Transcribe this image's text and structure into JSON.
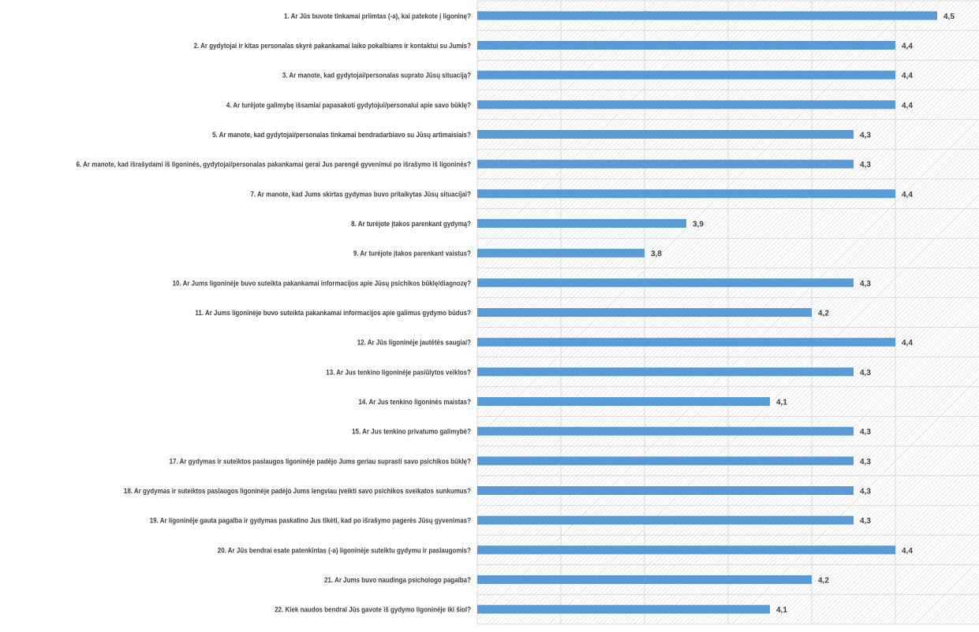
{
  "chart_data": {
    "type": "bar",
    "orientation": "horizontal",
    "categories": [
      "1. Ar Jūs buvote tinkamai priimtas (-a), kai patekote į ligoninę?",
      "2. Ar gydytojai ir kitas personalas skyrė pakankamai laiko pokalbiams ir kontaktui su Jumis?",
      "3. Ar manote, kad gydytojai/personalas suprato Jūsų situaciją?",
      "4. Ar turėjote galimybę išsamiai papasakoti gydytojui/personalui apie savo būklę?",
      "5. Ar manote, kad gydytojai/personalas tinkamai bendradarbiavo su Jūsų artimaisiais?",
      "6. Ar manote, kad išrašydami iš ligoninės, gydytojai/personalas pakankamai gerai Jus parengė gyvenimui po išrašymo iš ligoninės?",
      "7. Ar manote, kad Jums skirtas gydymas buvo pritaikytas Jūsų situacijai?",
      "8. Ar turėjote įtakos parenkant gydymą?",
      "9. Ar turėjote įtakos parenkant vaistus?",
      "10. Ar Jums ligoninėje buvo suteikta pakankamai informacijos apie Jūsų psichikos būklę/diagnozę?",
      "11. Ar Jums ligoninėje buvo suteikta pakankamai informacijos apie galimus gydymo būdus?",
      "12. Ar Jūs ligoninėje jautėtės saugiai?",
      "13. Ar Jus tenkino ligoninėje pasiūlytos veiklos?",
      "14. Ar Jus tenkino ligoninės maistas?",
      "15. Ar Jus tenkino privatumo galimybė?",
      "17. Ar gydymas ir suteiktos paslaugos ligoninėje padėjo Jums geriau suprasti savo psichikos būklę?",
      "18. Ar gydymas ir suteiktos paslaugos ligoninėje padėjo Jums lengviau įveikti savo psichikos sveikatos sunkumus?",
      "19. Ar ligoninėje gauta pagalba ir gydymas paskatino Jus tikėti, kad po išrašymo pagerės Jūsų gyvenimas?",
      "20. Ar Jūs bendrai esate patenkintas (-a) ligoninėje suteiktu gydymu ir paslaugomis?",
      "21. Ar Jums buvo naudinga psichologo pagalba?",
      "22. Kiek naudos bendrai Jūs gavote iš gydymo ligoninėje iki šiol?"
    ],
    "values": [
      4.5,
      4.4,
      4.4,
      4.4,
      4.3,
      4.3,
      4.4,
      3.9,
      3.8,
      4.3,
      4.2,
      4.4,
      4.3,
      4.1,
      4.3,
      4.3,
      4.3,
      4.3,
      4.4,
      4.2,
      4.1
    ],
    "data_labels": [
      "4,5",
      "4,4",
      "4,4",
      "4,4",
      "4,3",
      "4,3",
      "4,4",
      "3,9",
      "3,8",
      "4,3",
      "4,2",
      "4,4",
      "4,3",
      "4,1",
      "4,3",
      "4,3",
      "4,3",
      "4,3",
      "4,4",
      "4,2",
      "4,1"
    ],
    "xlim": [
      3.4,
      4.6
    ],
    "x_gridlines": [
      3.6,
      3.8,
      4.0,
      4.2,
      4.4
    ],
    "grid": true,
    "tick_labels_shown": false,
    "legend": "none",
    "bar_color": "#5B9BD5",
    "background": "hatched"
  }
}
